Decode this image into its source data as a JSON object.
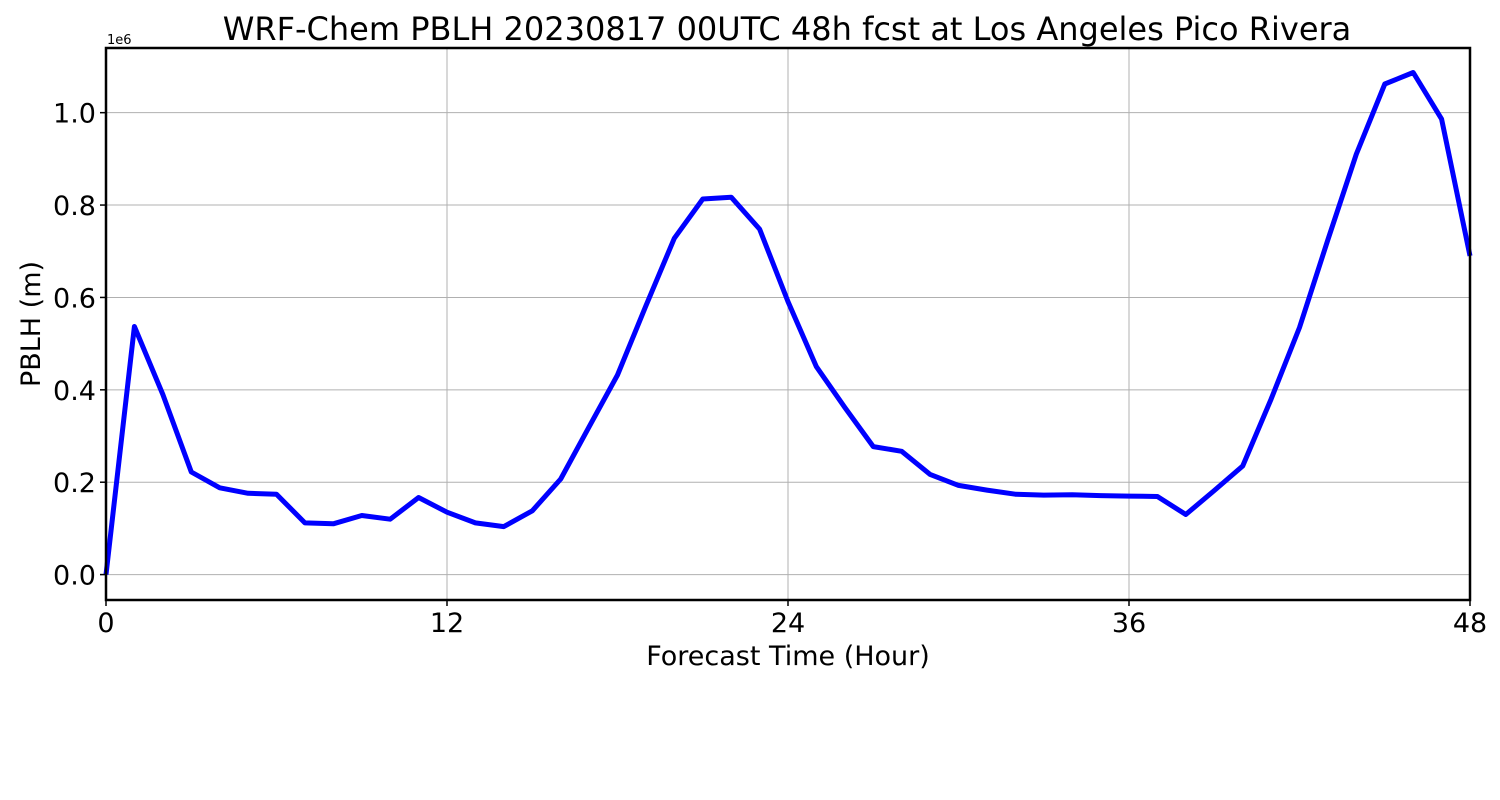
{
  "chart_data": {
    "type": "line",
    "title": "WRF-Chem PBLH  20230817 00UTC 48h fcst at Los Angeles Pico Rivera",
    "xlabel": "Forecast Time (Hour)",
    "ylabel": "PBLH  (m)",
    "y_offset_label": "1e6",
    "xlim": [
      0,
      48
    ],
    "ylim": [
      -0.055,
      1.14
    ],
    "x_ticks": [
      0,
      12,
      24,
      36,
      48
    ],
    "y_ticks": [
      0.0,
      0.2,
      0.4,
      0.6,
      0.8,
      1.0
    ],
    "y_tick_labels": [
      "0.0",
      "0.2",
      "0.4",
      "0.6",
      "0.8",
      "1.0"
    ],
    "grid": true,
    "line_color": "#0000ff",
    "series": [
      {
        "x": [
          0,
          1,
          2,
          3,
          4,
          5,
          6,
          7,
          8,
          9,
          10,
          11,
          12,
          13,
          14,
          15,
          16,
          17,
          18,
          19,
          20,
          21,
          22,
          23,
          24,
          25,
          26,
          27,
          28,
          29,
          30,
          31,
          32,
          33,
          34,
          35,
          36,
          37,
          38,
          39,
          40,
          41,
          42,
          43,
          44,
          45,
          46,
          47,
          48
        ],
        "values": [
          0.0,
          0.537,
          0.39,
          0.222,
          0.188,
          0.176,
          0.174,
          0.112,
          0.11,
          0.128,
          0.12,
          0.167,
          0.135,
          0.112,
          0.104,
          0.138,
          0.207,
          0.32,
          0.432,
          0.582,
          0.728,
          0.813,
          0.817,
          0.748,
          0.591,
          0.45,
          0.362,
          0.277,
          0.267,
          0.217,
          0.193,
          0.183,
          0.174,
          0.172,
          0.173,
          0.171,
          0.17,
          0.169,
          0.13,
          0.182,
          0.235,
          0.38,
          0.535,
          0.725,
          0.91,
          1.062,
          1.087,
          0.986,
          0.69
        ]
      }
    ]
  }
}
